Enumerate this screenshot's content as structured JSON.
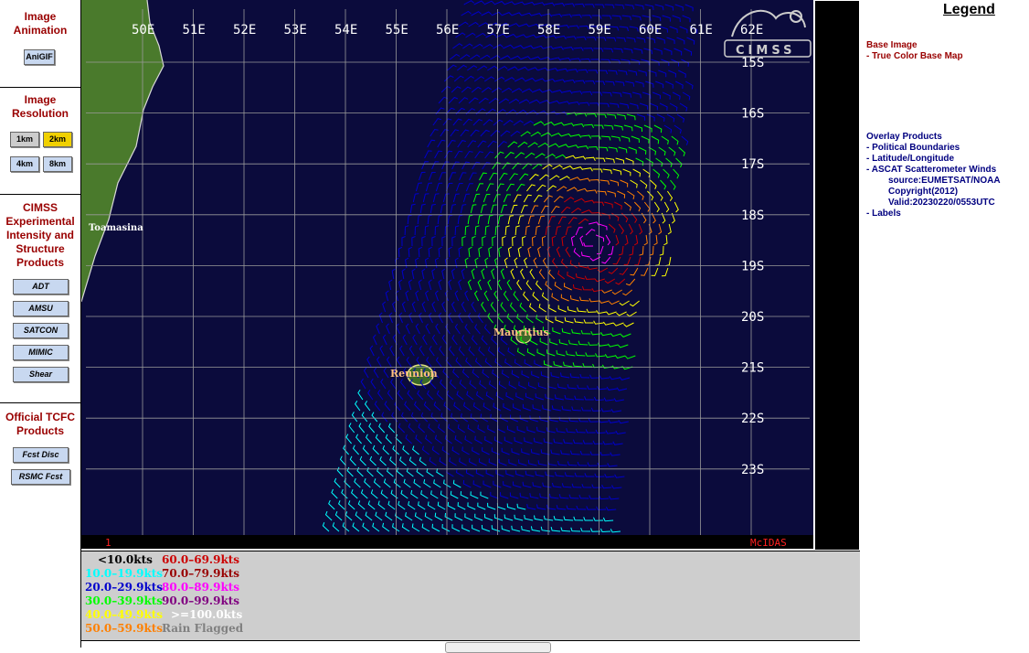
{
  "sidebar": {
    "animation": {
      "title": "Image Animation",
      "button": "AniGIF"
    },
    "resolution": {
      "title": "Image Resolution",
      "buttons": [
        "1km",
        "2km",
        "4km",
        "8km"
      ],
      "active": "2km"
    },
    "cimss": {
      "title": "CIMSS Experimental Intensity and Structure Products",
      "buttons": [
        "ADT",
        "AMSU",
        "SATCON",
        "MIMIC",
        "Shear"
      ]
    },
    "official": {
      "title": "Official TCFC Products",
      "buttons": [
        "Fcst Disc",
        "RSMC Fcst"
      ]
    }
  },
  "map": {
    "lon_labels": [
      "50E",
      "51E",
      "52E",
      "53E",
      "54E",
      "55E",
      "56E",
      "57E",
      "58E",
      "59E",
      "60E",
      "61E",
      "62E"
    ],
    "lat_labels": [
      "15S",
      "16S",
      "17S",
      "18S",
      "19S",
      "20S",
      "21S",
      "22S",
      "23S"
    ],
    "places": [
      "Toamasina",
      "Mauritius",
      "Reunion"
    ],
    "frame_number": "1",
    "software_label": "McIDAS",
    "logo_text": "CIMSS",
    "colors": {
      "ocean": "#0b0b3c",
      "land": "#4a7a2c",
      "grid": "#9a9a9a",
      "labels": "#ffffff",
      "city": "#ffc080"
    }
  },
  "wind_legend": {
    "items": [
      {
        "label": "<10.0kts",
        "color": "#000000"
      },
      {
        "label": "10.0–19.9kts",
        "color": "#00ffff"
      },
      {
        "label": "20.0–29.9kts",
        "color": "#0000cc"
      },
      {
        "label": "30.0–39.9kts",
        "color": "#00ff00"
      },
      {
        "label": "40.0–49.9kts",
        "color": "#ffff00"
      },
      {
        "label": "50.0–59.9kts",
        "color": "#ff8000"
      },
      {
        "label": "60.0–69.9kts",
        "color": "#cc0000"
      },
      {
        "label": "70.0–79.9kts",
        "color": "#990000"
      },
      {
        "label": "80.0–89.9kts",
        "color": "#ff00ff"
      },
      {
        "label": "90.0–99.9kts",
        "color": "#800080"
      },
      {
        "label": ">=100.0kts",
        "color": "#ffffff"
      },
      {
        "label": "Rain Flagged",
        "color": "#808080"
      }
    ]
  },
  "legend_panel": {
    "title": "Legend",
    "base_image_header": "Base Image",
    "base_image_item": "-  True Color Base Map",
    "overlay_header": "Overlay Products",
    "overlay_items": [
      "-  Political Boundaries",
      "-  Latitude/Longitude",
      "-  ASCAT Scatterometer Winds"
    ],
    "ascat_details": [
      "source:EUMETSAT/NOAA",
      "Copyright(2012)",
      "Valid:20230220/0553UTC"
    ],
    "labels_item": "-  Labels",
    "colors": {
      "header": "#990000",
      "item_base": "#990000",
      "item_overlay": "#000080"
    }
  }
}
